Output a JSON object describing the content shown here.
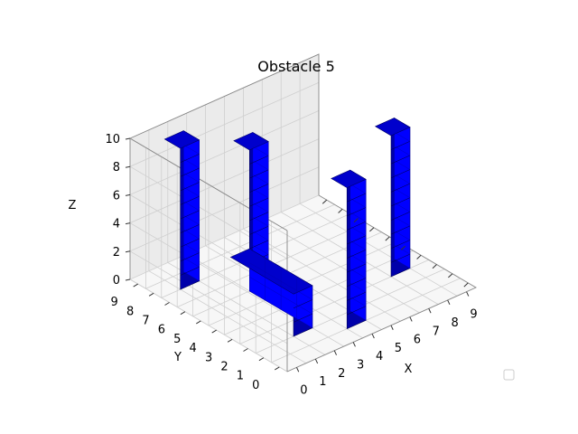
{
  "chart_data": {
    "type": "bar3d",
    "title": "Obstacle 5",
    "xlabel": "X",
    "ylabel": "Y",
    "zlabel": "Z",
    "xlim": [
      0,
      10
    ],
    "ylim": [
      0,
      10
    ],
    "zlim": [
      0,
      10
    ],
    "x_ticks": [
      "0",
      "1",
      "2",
      "3",
      "4",
      "5",
      "6",
      "7",
      "8",
      "9"
    ],
    "y_ticks": [
      "0",
      "1",
      "2",
      "3",
      "4",
      "5",
      "6",
      "7",
      "8",
      "9"
    ],
    "z_ticks": [
      "0",
      "2",
      "4",
      "6",
      "8",
      "10"
    ],
    "grid": true,
    "legend": "empty box, lower-right",
    "bar_color": "#0000ff",
    "obstacles": [
      {
        "x": 1,
        "y": 8,
        "dx": 1,
        "dy": 1,
        "height": 10
      },
      {
        "x": 3,
        "y": 6,
        "dx": 1,
        "dy": 1,
        "height": 10
      },
      {
        "x": 2,
        "y": 2,
        "dx": 1,
        "dy": 4,
        "height": 3
      },
      {
        "x": 4,
        "y": 1,
        "dx": 1,
        "dy": 1,
        "height": 10
      },
      {
        "x": 8,
        "y": 3,
        "dx": 1,
        "dy": 1,
        "height": 10
      }
    ]
  }
}
